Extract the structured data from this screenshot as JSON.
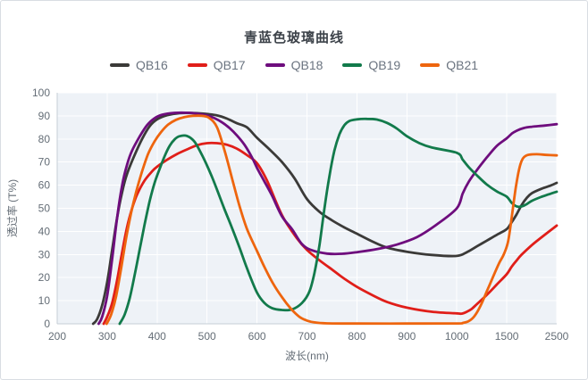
{
  "chart_data": {
    "type": "line",
    "title": "青蓝色玻璃曲线",
    "xlabel": "波长(nm)",
    "ylabel": "透过率 (T%)",
    "x_ticks": [
      200,
      300,
      400,
      500,
      600,
      700,
      800,
      900,
      1000,
      1500,
      2500
    ],
    "x_scale": "piecewise-linear: equal tick spacing; 100 nm per interval from 200-1000, then 1000-1500 and 1500-2500 each one interval",
    "y_ticks": [
      0,
      10,
      20,
      30,
      40,
      50,
      60,
      70,
      80,
      90,
      100
    ],
    "ylim": [
      0,
      100
    ],
    "grid": true,
    "legend_position": "top",
    "colors": {
      "plot_background": "#eef2f7",
      "gridline": "#ffffff",
      "axis_line": "#c6cdd5",
      "tick_label": "#646d76",
      "axis_title": "#646d76",
      "title_text": "#3d434a",
      "legend_text": "#6b7480"
    },
    "series": [
      {
        "name": "QB16",
        "color": "#3b3a38",
        "points": [
          [
            272,
            0
          ],
          [
            280,
            2
          ],
          [
            290,
            8
          ],
          [
            300,
            18
          ],
          [
            310,
            32
          ],
          [
            320,
            46
          ],
          [
            330,
            57
          ],
          [
            340,
            65
          ],
          [
            355,
            73
          ],
          [
            370,
            80
          ],
          [
            385,
            85.5
          ],
          [
            400,
            88.5
          ],
          [
            420,
            90.3
          ],
          [
            445,
            91.2
          ],
          [
            475,
            91.2
          ],
          [
            500,
            90.8
          ],
          [
            520,
            90.2
          ],
          [
            540,
            88.8
          ],
          [
            560,
            86.8
          ],
          [
            580,
            85
          ],
          [
            600,
            80.5
          ],
          [
            625,
            75.5
          ],
          [
            650,
            70
          ],
          [
            675,
            63
          ],
          [
            700,
            54
          ],
          [
            725,
            48.5
          ],
          [
            750,
            44.8
          ],
          [
            775,
            41.7
          ],
          [
            800,
            39
          ],
          [
            830,
            35.7
          ],
          [
            860,
            33
          ],
          [
            900,
            31.2
          ],
          [
            950,
            29.8
          ],
          [
            1000,
            29.4
          ],
          [
            1100,
            31
          ],
          [
            1200,
            33.5
          ],
          [
            1300,
            36
          ],
          [
            1400,
            38.5
          ],
          [
            1500,
            41
          ],
          [
            1600,
            44
          ],
          [
            1700,
            47.5
          ],
          [
            1800,
            51.5
          ],
          [
            1900,
            54.5
          ],
          [
            2000,
            56.5
          ],
          [
            2200,
            58.5
          ],
          [
            2350,
            59.6
          ],
          [
            2500,
            61
          ]
        ]
      },
      {
        "name": "QB17",
        "color": "#e01e19",
        "points": [
          [
            293,
            0
          ],
          [
            300,
            3
          ],
          [
            310,
            9
          ],
          [
            320,
            19
          ],
          [
            330,
            31
          ],
          [
            340,
            42
          ],
          [
            350,
            50
          ],
          [
            360,
            56
          ],
          [
            375,
            62
          ],
          [
            390,
            66
          ],
          [
            400,
            68
          ],
          [
            420,
            71
          ],
          [
            440,
            73.5
          ],
          [
            460,
            75.5
          ],
          [
            480,
            77.3
          ],
          [
            500,
            78.2
          ],
          [
            520,
            78.2
          ],
          [
            540,
            77.5
          ],
          [
            560,
            75.8
          ],
          [
            580,
            73
          ],
          [
            600,
            69.5
          ],
          [
            620,
            62
          ],
          [
            650,
            47
          ],
          [
            680,
            37
          ],
          [
            700,
            32
          ],
          [
            725,
            27.5
          ],
          [
            750,
            23.5
          ],
          [
            775,
            19.5
          ],
          [
            800,
            16
          ],
          [
            830,
            12.5
          ],
          [
            860,
            9.5
          ],
          [
            900,
            7
          ],
          [
            950,
            5.2
          ],
          [
            1000,
            4.5
          ],
          [
            1050,
            4.4
          ],
          [
            1100,
            5.2
          ],
          [
            1150,
            6.5
          ],
          [
            1200,
            8.5
          ],
          [
            1300,
            12.5
          ],
          [
            1400,
            17
          ],
          [
            1500,
            21.5
          ],
          [
            1600,
            24.8
          ],
          [
            1700,
            27.5
          ],
          [
            1800,
            30
          ],
          [
            2000,
            34
          ],
          [
            2200,
            37.5
          ],
          [
            2500,
            42.5
          ]
        ]
      },
      {
        "name": "QB18",
        "color": "#6e0d7d",
        "points": [
          [
            283,
            0
          ],
          [
            290,
            3
          ],
          [
            300,
            12
          ],
          [
            310,
            28
          ],
          [
            320,
            46
          ],
          [
            330,
            60
          ],
          [
            340,
            69
          ],
          [
            350,
            75
          ],
          [
            365,
            81
          ],
          [
            380,
            86
          ],
          [
            395,
            89
          ],
          [
            410,
            90.5
          ],
          [
            435,
            91.3
          ],
          [
            465,
            91.3
          ],
          [
            485,
            90.8
          ],
          [
            500,
            90.2
          ],
          [
            515,
            89
          ],
          [
            530,
            87.2
          ],
          [
            545,
            84.7
          ],
          [
            560,
            81.5
          ],
          [
            575,
            77.5
          ],
          [
            590,
            72
          ],
          [
            600,
            67.5
          ],
          [
            615,
            61.5
          ],
          [
            630,
            55.5
          ],
          [
            650,
            46.5
          ],
          [
            670,
            41
          ],
          [
            690,
            34.5
          ],
          [
            710,
            31.8
          ],
          [
            740,
            30.4
          ],
          [
            770,
            30.3
          ],
          [
            800,
            31
          ],
          [
            840,
            32.3
          ],
          [
            880,
            34.3
          ],
          [
            920,
            37.5
          ],
          [
            960,
            43
          ],
          [
            1000,
            50
          ],
          [
            1060,
            56.5
          ],
          [
            1120,
            61.5
          ],
          [
            1200,
            66.5
          ],
          [
            1300,
            72
          ],
          [
            1400,
            77
          ],
          [
            1500,
            80.3
          ],
          [
            1600,
            82.3
          ],
          [
            1700,
            83.6
          ],
          [
            1850,
            84.8
          ],
          [
            2000,
            85.3
          ],
          [
            2250,
            85.8
          ],
          [
            2500,
            86.4
          ]
        ]
      },
      {
        "name": "QB19",
        "color": "#127a4b",
        "points": [
          [
            325,
            0
          ],
          [
            335,
            4
          ],
          [
            345,
            11
          ],
          [
            355,
            21
          ],
          [
            365,
            32
          ],
          [
            375,
            43
          ],
          [
            385,
            53
          ],
          [
            395,
            61
          ],
          [
            405,
            67
          ],
          [
            415,
            72.5
          ],
          [
            425,
            77
          ],
          [
            435,
            79.8
          ],
          [
            445,
            81.2
          ],
          [
            460,
            81.3
          ],
          [
            475,
            78.8
          ],
          [
            490,
            73
          ],
          [
            500,
            68.5
          ],
          [
            510,
            63.5
          ],
          [
            520,
            58
          ],
          [
            535,
            49.5
          ],
          [
            550,
            41.5
          ],
          [
            565,
            33
          ],
          [
            580,
            24
          ],
          [
            600,
            13.5
          ],
          [
            615,
            9
          ],
          [
            630,
            6.8
          ],
          [
            650,
            6
          ],
          [
            670,
            6.2
          ],
          [
            690,
            9
          ],
          [
            705,
            14
          ],
          [
            715,
            22
          ],
          [
            725,
            34
          ],
          [
            735,
            50
          ],
          [
            745,
            64
          ],
          [
            755,
            75
          ],
          [
            765,
            82
          ],
          [
            775,
            86
          ],
          [
            785,
            87.8
          ],
          [
            800,
            88.5
          ],
          [
            820,
            88.7
          ],
          [
            840,
            88.4
          ],
          [
            860,
            87
          ],
          [
            880,
            84.5
          ],
          [
            900,
            81.2
          ],
          [
            925,
            78.2
          ],
          [
            950,
            76.3
          ],
          [
            1000,
            74
          ],
          [
            1060,
            71
          ],
          [
            1120,
            67.8
          ],
          [
            1200,
            64.3
          ],
          [
            1300,
            60.3
          ],
          [
            1400,
            57.3
          ],
          [
            1500,
            55
          ],
          [
            1600,
            52.3
          ],
          [
            1700,
            50.8
          ],
          [
            1800,
            50.8
          ],
          [
            1900,
            51.8
          ],
          [
            2000,
            53.2
          ],
          [
            2200,
            55
          ],
          [
            2500,
            57.2
          ]
        ]
      },
      {
        "name": "QB21",
        "color": "#ee650e",
        "points": [
          [
            299,
            0
          ],
          [
            308,
            4
          ],
          [
            318,
            12
          ],
          [
            328,
            24
          ],
          [
            338,
            37
          ],
          [
            348,
            48
          ],
          [
            358,
            57
          ],
          [
            370,
            66
          ],
          [
            382,
            73.5
          ],
          [
            395,
            79
          ],
          [
            408,
            83
          ],
          [
            422,
            86.2
          ],
          [
            438,
            88.3
          ],
          [
            455,
            89.5
          ],
          [
            472,
            90
          ],
          [
            490,
            90
          ],
          [
            505,
            89
          ],
          [
            520,
            85
          ],
          [
            535,
            75
          ],
          [
            550,
            63
          ],
          [
            565,
            51
          ],
          [
            580,
            41
          ],
          [
            600,
            31.5
          ],
          [
            615,
            24.5
          ],
          [
            632,
            17.5
          ],
          [
            650,
            11.5
          ],
          [
            668,
            6.5
          ],
          [
            685,
            3
          ],
          [
            700,
            1.4
          ],
          [
            715,
            0.6
          ],
          [
            740,
            0.2
          ],
          [
            800,
            0.1
          ],
          [
            900,
            0.1
          ],
          [
            1000,
            0.15
          ],
          [
            1060,
            0.4
          ],
          [
            1120,
            1.2
          ],
          [
            1180,
            3.5
          ],
          [
            1240,
            8
          ],
          [
            1300,
            14
          ],
          [
            1360,
            20
          ],
          [
            1420,
            26
          ],
          [
            1470,
            30
          ],
          [
            1520,
            35
          ],
          [
            1570,
            41.5
          ],
          [
            1620,
            49.5
          ],
          [
            1670,
            57.5
          ],
          [
            1720,
            64
          ],
          [
            1770,
            68.8
          ],
          [
            1820,
            71.5
          ],
          [
            1880,
            72.7
          ],
          [
            1950,
            73.2
          ],
          [
            2100,
            73.4
          ],
          [
            2300,
            73.1
          ],
          [
            2500,
            72.9
          ]
        ]
      }
    ]
  }
}
